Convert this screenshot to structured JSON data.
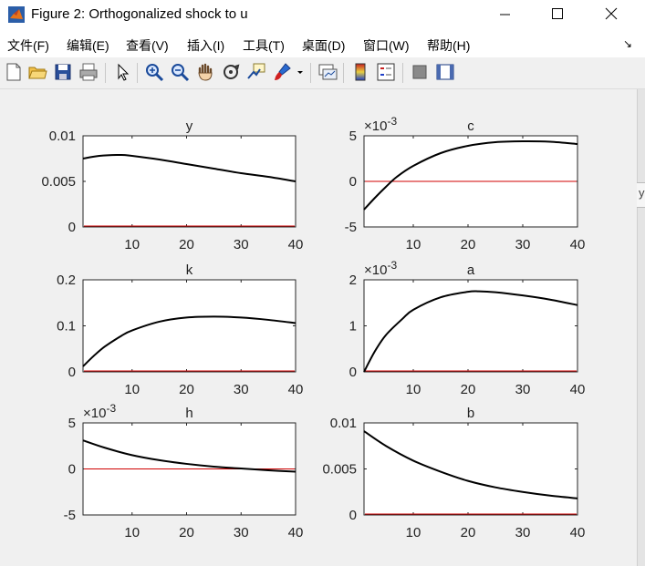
{
  "window": {
    "title": "Figure 2: Orthogonalized shock to u",
    "minimize_glyph": "—",
    "maximize_glyph": "☐",
    "close_glyph": "✕"
  },
  "menu": {
    "items": [
      "文件(F)",
      "编辑(E)",
      "查看(V)",
      "插入(I)",
      "工具(T)",
      "桌面(D)",
      "窗口(W)",
      "帮助(H)"
    ],
    "overflow_arrow": "↘"
  },
  "toolbar": {
    "icons": [
      "new-figure-icon",
      "open-file-icon",
      "save-icon",
      "print-icon",
      "edit-plot-arrow-icon",
      "zoom-in-icon",
      "zoom-out-icon",
      "pan-hand-icon",
      "rotate-3d-icon",
      "data-cursor-icon",
      "brush-icon",
      "brush-dropdown-icon",
      "link-plot-icon",
      "colorbar-icon",
      "legend-icon",
      "hide-plot-tools-icon",
      "show-plot-tools-icon"
    ]
  },
  "edge_text": "y",
  "colors": {
    "response": "#000000",
    "zero_line": "#d00000",
    "axes_bg": "#ffffff",
    "figure_bg": "#f0f0f0"
  },
  "chart_data": [
    {
      "type": "line",
      "title": "y",
      "xlim": [
        1,
        40
      ],
      "ylim": [
        0,
        0.01
      ],
      "yticks": [
        "0",
        "0.005",
        "0.01"
      ],
      "xticks": [
        "10",
        "20",
        "30",
        "40"
      ],
      "exponent_label": "",
      "grid": false,
      "zero_line": true,
      "series": [
        {
          "x": [
            1,
            4,
            8,
            10,
            15,
            20,
            25,
            30,
            35,
            40
          ],
          "values": [
            0.0075,
            0.0078,
            0.0079,
            0.0078,
            0.0074,
            0.0069,
            0.0064,
            0.0059,
            0.0055,
            0.005
          ]
        }
      ]
    },
    {
      "type": "line",
      "title": "c",
      "xlim": [
        1,
        40
      ],
      "ylim": [
        -5,
        5
      ],
      "yticks": [
        "-5",
        "0",
        "5"
      ],
      "xticks": [
        "10",
        "20",
        "30",
        "40"
      ],
      "exponent_label": "×10^-3",
      "grid": false,
      "zero_line": true,
      "series": [
        {
          "x": [
            1,
            3,
            5,
            7,
            10,
            15,
            20,
            25,
            30,
            35,
            40
          ],
          "values": [
            -3.1,
            -1.8,
            -0.6,
            0.5,
            1.7,
            3.1,
            3.9,
            4.3,
            4.4,
            4.35,
            4.1
          ]
        }
      ]
    },
    {
      "type": "line",
      "title": "k",
      "xlim": [
        1,
        40
      ],
      "ylim": [
        0,
        0.2
      ],
      "yticks": [
        "0",
        "0.1",
        "0.2"
      ],
      "xticks": [
        "10",
        "20",
        "30",
        "40"
      ],
      "exponent_label": "",
      "grid": false,
      "zero_line": true,
      "series": [
        {
          "x": [
            1,
            3,
            5,
            8,
            10,
            15,
            20,
            25,
            30,
            35,
            40
          ],
          "values": [
            0.012,
            0.035,
            0.055,
            0.078,
            0.09,
            0.109,
            0.118,
            0.12,
            0.118,
            0.113,
            0.106
          ]
        }
      ]
    },
    {
      "type": "line",
      "title": "a",
      "xlim": [
        1,
        40
      ],
      "ylim": [
        0,
        2
      ],
      "yticks": [
        "0",
        "1",
        "2"
      ],
      "xticks": [
        "10",
        "20",
        "30",
        "40"
      ],
      "exponent_label": "×10^-3",
      "grid": false,
      "zero_line": true,
      "series": [
        {
          "x": [
            1,
            3,
            5,
            8,
            10,
            15,
            20,
            22,
            25,
            30,
            35,
            40
          ],
          "values": [
            0.0,
            0.45,
            0.8,
            1.15,
            1.35,
            1.62,
            1.74,
            1.75,
            1.73,
            1.66,
            1.57,
            1.45
          ]
        }
      ]
    },
    {
      "type": "line",
      "title": "h",
      "xlim": [
        1,
        40
      ],
      "ylim": [
        -5,
        5
      ],
      "yticks": [
        "-5",
        "0",
        "5"
      ],
      "xticks": [
        "10",
        "20",
        "30",
        "40"
      ],
      "exponent_label": "×10^-3",
      "grid": false,
      "zero_line": true,
      "series": [
        {
          "x": [
            1,
            5,
            10,
            15,
            20,
            25,
            30,
            35,
            40
          ],
          "values": [
            3.1,
            2.3,
            1.5,
            0.95,
            0.55,
            0.25,
            0.05,
            -0.15,
            -0.3
          ]
        }
      ]
    },
    {
      "type": "line",
      "title": "b",
      "xlim": [
        1,
        40
      ],
      "ylim": [
        0,
        0.01
      ],
      "yticks": [
        "0",
        "0.005",
        "0.01"
      ],
      "xticks": [
        "10",
        "20",
        "30",
        "40"
      ],
      "exponent_label": "",
      "grid": false,
      "zero_line": true,
      "series": [
        {
          "x": [
            1,
            5,
            10,
            15,
            20,
            25,
            30,
            35,
            40
          ],
          "values": [
            0.0091,
            0.0075,
            0.0059,
            0.0047,
            0.0037,
            0.003,
            0.0025,
            0.0021,
            0.0018
          ]
        }
      ]
    }
  ]
}
